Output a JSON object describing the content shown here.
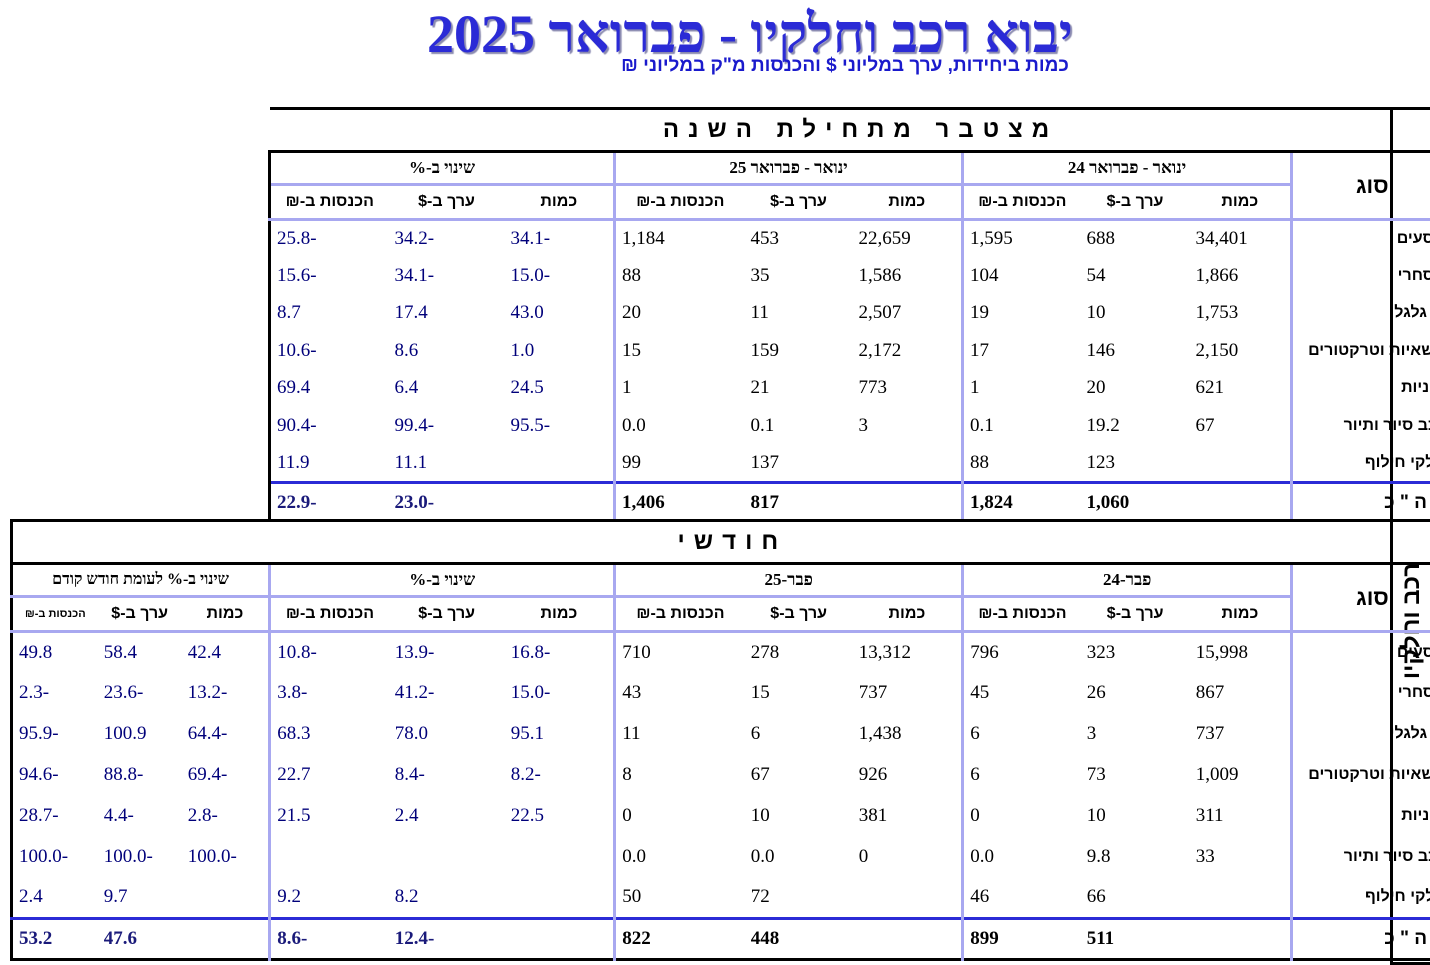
{
  "title": "יבוא רכב וחלקיו - פברואר 2025",
  "subtitle": "כמות ביחידות, ערך במליוני $ והכנסות מ\"ק במליוני ₪",
  "side_label": "רכב וחלקיו",
  "ytd": {
    "section_title": "מצטבר מתחילת השנה",
    "type_header": "סוג",
    "group_prev": "ינואר - פברואר 24",
    "group_curr": "ינואר - פברואר 25",
    "group_change": "שינוי ב-%",
    "col_qty": "כמות",
    "col_value": "ערך ב-$",
    "col_rev": "הכנסות ב-₪",
    "rows": [
      {
        "label": "נוסעים",
        "p_qty": "34,401",
        "p_val": "688",
        "p_rev": "1,595",
        "c_qty": "22,659",
        "c_val": "453",
        "c_rev": "1,184",
        "ch_qty": "-34.1",
        "ch_val": "-34.2",
        "ch_rev": "-25.8"
      },
      {
        "label": "מסחרי",
        "p_qty": "1,866",
        "p_val": "54",
        "p_rev": "104",
        "c_qty": "1,586",
        "c_val": "35",
        "c_rev": "88",
        "ch_qty": "-15.0",
        "ch_val": "-34.1",
        "ch_rev": "-15.6"
      },
      {
        "label": "דו גלגלי",
        "p_qty": "1,753",
        "p_val": "10",
        "p_rev": "19",
        "c_qty": "2,507",
        "c_val": "11",
        "c_rev": "20",
        "ch_qty": "43.0",
        "ch_val": "17.4",
        "ch_rev": "8.7"
      },
      {
        "label": "משאיות וטרקטורים",
        "p_qty": "2,150",
        "p_val": "146",
        "p_rev": "17",
        "c_qty": "2,172",
        "c_val": "159",
        "c_rev": "15",
        "ch_qty": "1.0",
        "ch_val": "8.6",
        "ch_rev": "-10.6"
      },
      {
        "label": "מוניות",
        "p_qty": "621",
        "p_val": "20",
        "p_rev": "1",
        "c_qty": "773",
        "c_val": "21",
        "c_rev": "1",
        "ch_qty": "24.5",
        "ch_val": "6.4",
        "ch_rev": "69.4"
      },
      {
        "label": "רכב סיור ותיור",
        "p_qty": "67",
        "p_val": "19.2",
        "p_rev": "0.1",
        "c_qty": "3",
        "c_val": "0.1",
        "c_rev": "0.0",
        "ch_qty": "-95.5",
        "ch_val": "-99.4",
        "ch_rev": "-90.4"
      },
      {
        "label": "חלקי חילוף",
        "p_qty": "",
        "p_val": "123",
        "p_rev": "88",
        "c_qty": "",
        "c_val": "137",
        "c_rev": "99",
        "ch_qty": "",
        "ch_val": "11.1",
        "ch_rev": "11.9"
      }
    ],
    "total": {
      "label": "ס ה \" כ",
      "p_qty": "",
      "p_val": "1,060",
      "p_rev": "1,824",
      "c_qty": "",
      "c_val": "817",
      "c_rev": "1,406",
      "ch_qty": "",
      "ch_val": "-23.0",
      "ch_rev": "-22.9"
    }
  },
  "monthly": {
    "section_title": "חודשי",
    "type_header": "סוג",
    "group_prev": "פבר-24",
    "group_curr": "פבר-25",
    "group_change": "שינוי ב-%",
    "group_mom": "שינוי ב-% לעומת חודש קודם",
    "col_qty": "כמות",
    "col_value": "ערך ב-$",
    "col_rev": "הכנסות ב-₪",
    "rows": [
      {
        "label": "נוסעים",
        "p_qty": "15,998",
        "p_val": "323",
        "p_rev": "796",
        "c_qty": "13,312",
        "c_val": "278",
        "c_rev": "710",
        "ch_qty": "-16.8",
        "ch_val": "-13.9",
        "ch_rev": "-10.8",
        "m_qty": "42.4",
        "m_val": "58.4",
        "m_rev": "49.8"
      },
      {
        "label": "מסחרי",
        "p_qty": "867",
        "p_val": "26",
        "p_rev": "45",
        "c_qty": "737",
        "c_val": "15",
        "c_rev": "43",
        "ch_qty": "-15.0",
        "ch_val": "-41.2",
        "ch_rev": "-3.8",
        "m_qty": "-13.2",
        "m_val": "-23.6",
        "m_rev": "-2.3"
      },
      {
        "label": "דו גלגלי",
        "p_qty": "737",
        "p_val": "3",
        "p_rev": "6",
        "c_qty": "1,438",
        "c_val": "6",
        "c_rev": "11",
        "ch_qty": "95.1",
        "ch_val": "78.0",
        "ch_rev": "68.3",
        "m_qty": "-64.4",
        "m_val": "100.9",
        "m_rev": "-95.9"
      },
      {
        "label": "משאיות וטרקטורים",
        "p_qty": "1,009",
        "p_val": "73",
        "p_rev": "6",
        "c_qty": "926",
        "c_val": "67",
        "c_rev": "8",
        "ch_qty": "-8.2",
        "ch_val": "-8.4",
        "ch_rev": "22.7",
        "m_qty": "-69.4",
        "m_val": "-88.8",
        "m_rev": "-94.6"
      },
      {
        "label": "מוניות",
        "p_qty": "311",
        "p_val": "10",
        "p_rev": "0",
        "c_qty": "381",
        "c_val": "10",
        "c_rev": "0",
        "ch_qty": "22.5",
        "ch_val": "2.4",
        "ch_rev": "21.5",
        "m_qty": "-2.8",
        "m_val": "-4.4",
        "m_rev": "-28.7"
      },
      {
        "label": "רכב סיור ותיור",
        "p_qty": "33",
        "p_val": "9.8",
        "p_rev": "0.0",
        "c_qty": "0",
        "c_val": "0.0",
        "c_rev": "0.0",
        "ch_qty": "",
        "ch_val": "",
        "ch_rev": "",
        "m_qty": "-100.0",
        "m_val": "-100.0",
        "m_rev": "-100.0"
      },
      {
        "label": "חלקי חילוף",
        "p_qty": "",
        "p_val": "66",
        "p_rev": "46",
        "c_qty": "",
        "c_val": "72",
        "c_rev": "50",
        "ch_qty": "",
        "ch_val": "8.2",
        "ch_rev": "9.2",
        "m_qty": "",
        "m_val": "9.7",
        "m_rev": "2.4"
      }
    ],
    "total": {
      "label": "ס ה \" כ",
      "p_qty": "",
      "p_val": "511",
      "p_rev": "899",
      "c_qty": "",
      "c_val": "448",
      "c_rev": "822",
      "ch_qty": "",
      "ch_val": "-12.4",
      "ch_rev": "-8.6",
      "m_qty": "",
      "m_val": "47.6",
      "m_rev": "53.2"
    }
  }
}
